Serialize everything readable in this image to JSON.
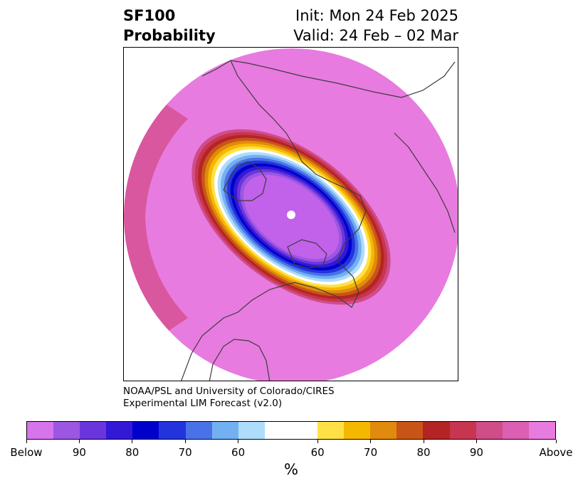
{
  "title": {
    "left_line1": "SF100",
    "left_line2": "Probability",
    "right_line1": "Init: Mon 24 Feb 2025",
    "right_line2": "Valid: 24 Feb – 02 Mar"
  },
  "credit": {
    "line1": "NOAA/PSL and University of Colorado/CIRES",
    "line2": "Experimental LIM Forecast (v2.0)"
  },
  "colorbar": {
    "unit_label": "%",
    "colors": [
      "#d674ec",
      "#9b57e2",
      "#6a36dc",
      "#3318d6",
      "#0000cd",
      "#2334dc",
      "#4a72e8",
      "#73b0f2",
      "#aedcfb",
      "#ffffff",
      "#ffffff",
      "#ffe147",
      "#f5b800",
      "#e08a0e",
      "#c85517",
      "#b42424",
      "#c83550",
      "#cf4d88",
      "#dc5fb3",
      "#e87bdf"
    ],
    "tick_labels": [
      "Below",
      "90",
      "80",
      "70",
      "60",
      "60",
      "70",
      "80",
      "90",
      "Above"
    ]
  },
  "map": {
    "background_color": "#e87bdf",
    "rim_color": "#cc3b6a",
    "ring_colors": [
      "#cf4d88",
      "#c83550",
      "#b42424",
      "#c85517",
      "#e08a0e",
      "#f5b800",
      "#ffe147",
      "#ffffff",
      "#aedcfb",
      "#73b0f2",
      "#4a72e8",
      "#2334dc",
      "#0000cd",
      "#3318d6",
      "#6a36dc",
      "#9b57e2",
      "#c261ea"
    ],
    "core_color": "#c261ea",
    "pole_marker_color": "#ffffff",
    "coastline_color": "#3c3c3c"
  }
}
